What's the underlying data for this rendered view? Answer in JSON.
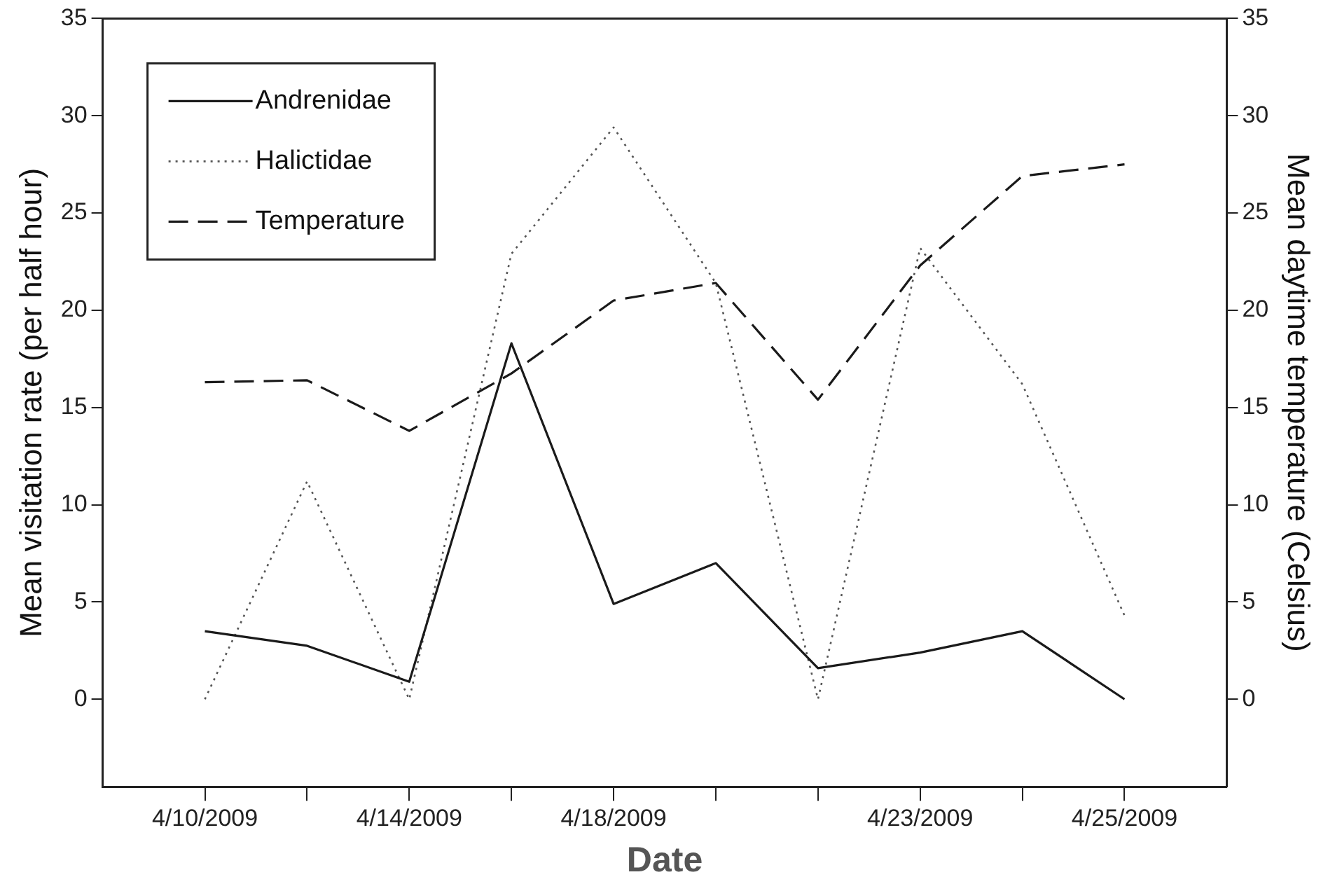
{
  "chart_data": {
    "type": "line",
    "xlabel": "Date",
    "ylabel": "Mean visitation rate (per half hour)",
    "y2label": "Mean daytime temperature (Celsius)",
    "categories": [
      "4/10/2009",
      null,
      "4/14/2009",
      null,
      "4/18/2009",
      null,
      null,
      "4/23/2009",
      null,
      "4/25/2009"
    ],
    "series": [
      {
        "name": "Andrenidae",
        "color": "#1a1a1a",
        "line_style": "solid",
        "values": [
          3.5,
          2.75,
          0.9,
          18.3,
          4.9,
          7.0,
          1.6,
          2.4,
          3.5,
          0
        ]
      },
      {
        "name": "Halictidae",
        "color": "#555555",
        "line_style": "dotted",
        "values": [
          0,
          11.2,
          0,
          22.9,
          29.4,
          21.4,
          0,
          23.2,
          16.2,
          4.3
        ]
      },
      {
        "name": "Temperature",
        "color": "#1a1a1a",
        "line_style": "dashed",
        "axis": "y2",
        "values": [
          16.3,
          16.4,
          13.8,
          16.75,
          20.5,
          21.4,
          15.4,
          22.3,
          26.9,
          27.5
        ]
      }
    ],
    "ylim": [
      -4.5,
      35
    ],
    "yticks": [
      0,
      5,
      10,
      15,
      20,
      25,
      30,
      35
    ],
    "y2lim": [
      -4.5,
      35
    ],
    "y2ticks": [
      0,
      5,
      10,
      15,
      20,
      25,
      30,
      35
    ],
    "grid": false,
    "legend": "top left",
    "marker": "none"
  }
}
